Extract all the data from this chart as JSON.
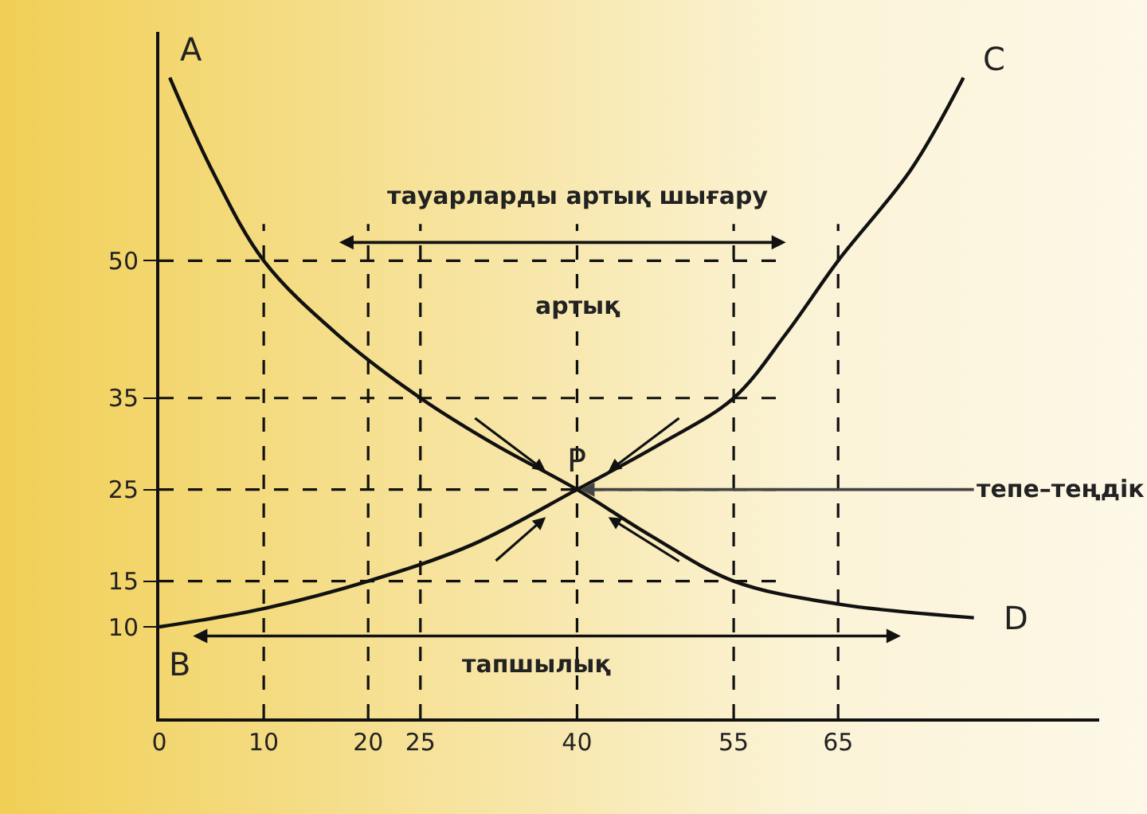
{
  "chart_data": {
    "type": "line",
    "series": [
      {
        "color": "#111111",
        "x": [
          1,
          5,
          10,
          17,
          25,
          32,
          40,
          47,
          55,
          65,
          78
        ],
        "values": [
          70,
          60,
          50,
          42,
          35,
          30,
          25,
          20,
          15,
          12.5,
          11
        ]
      },
      {
        "color": "#111111",
        "x": [
          0,
          10,
          20,
          30,
          40,
          48,
          55,
          60,
          65,
          72,
          77
        ],
        "values": [
          10,
          12,
          15,
          19,
          25,
          30,
          35,
          42,
          50,
          60,
          70
        ]
      }
    ],
    "xlim": [
      0,
      90
    ],
    "ylim": [
      0,
      75
    ],
    "xticks": [
      0,
      10,
      20,
      25,
      40,
      55,
      65
    ],
    "yticks": [
      10,
      15,
      25,
      35,
      50
    ],
    "grid": false,
    "marker": "none",
    "line_style": "solid",
    "ref_lines": [
      {
        "axis": "y",
        "value": 50,
        "line_style": "dashed"
      },
      {
        "axis": "y",
        "value": 35,
        "line_style": "dashed"
      },
      {
        "axis": "y",
        "value": 25,
        "line_style": "dashed"
      },
      {
        "axis": "y",
        "value": 15,
        "line_style": "dashed"
      },
      {
        "axis": "x",
        "value": 10,
        "line_style": "dashed"
      },
      {
        "axis": "x",
        "value": 20,
        "line_style": "dashed"
      },
      {
        "axis": "x",
        "value": 25,
        "line_style": "dashed"
      },
      {
        "axis": "x",
        "value": 40,
        "line_style": "dashed"
      },
      {
        "axis": "x",
        "value": 55,
        "line_style": "dashed"
      },
      {
        "axis": "x",
        "value": 65,
        "line_style": "dashed"
      }
    ],
    "annotations": [
      "A",
      "C",
      "B",
      "D",
      {
        "text": "P",
        "x": 40,
        "y": 25
      },
      "тауарларды артық шығару",
      "артық",
      {
        "text": "тепе–теңдік",
        "x": 40,
        "y": 25
      },
      "тапшылық"
    ]
  }
}
